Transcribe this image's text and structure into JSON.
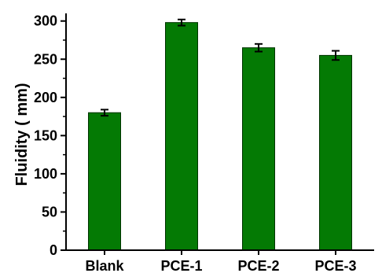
{
  "chart_data": {
    "type": "bar",
    "categories": [
      "Blank",
      "PCE-1",
      "PCE-2",
      "PCE-3"
    ],
    "values": [
      180,
      298,
      265,
      255
    ],
    "errors": [
      4,
      4,
      5,
      6
    ],
    "xlabel": "",
    "ylabel": "Fluidity ( mm)",
    "ylim": [
      0,
      310
    ],
    "yticks": [
      0,
      50,
      100,
      150,
      200,
      250,
      300
    ],
    "grid": false,
    "colors": {
      "bar_fill": "#047a04",
      "bar_stroke": "#003300",
      "axis": "#000000"
    }
  }
}
